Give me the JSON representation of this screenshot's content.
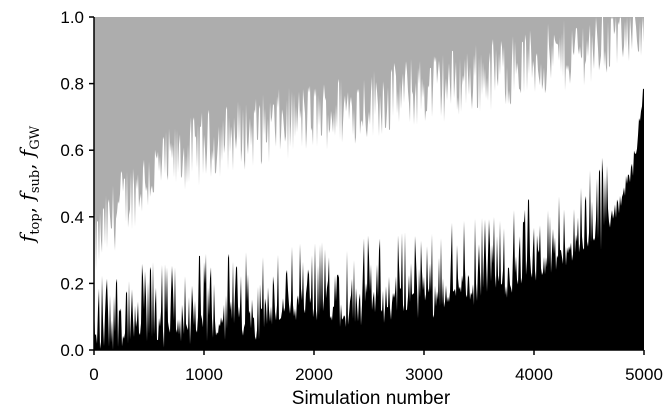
{
  "chart_data": {
    "type": "area",
    "xlabel": "Simulation number",
    "ylabel_parts": [
      {
        "f": "f",
        "sub": "top",
        "sep": ", "
      },
      {
        "f": "f",
        "sub": "sub",
        "sep": ", "
      },
      {
        "f": "f",
        "sub": "GW",
        "sep": ""
      }
    ],
    "xlim": [
      0,
      5000
    ],
    "ylim": [
      0.0,
      1.0
    ],
    "x_ticks": [
      0,
      1000,
      2000,
      3000,
      4000,
      5000
    ],
    "y_ticks": [
      "0.0",
      "0.2",
      "0.4",
      "0.6",
      "0.8",
      "1.0"
    ],
    "grid": false,
    "legend": "none",
    "colors": {
      "top": "#adadad",
      "sub": "#ffffff",
      "gw": "#000000"
    },
    "series": [
      {
        "component": "gw",
        "x": [
          0,
          250,
          500,
          750,
          1000,
          1250,
          1500,
          1750,
          2000,
          2250,
          2500,
          2750,
          3000,
          3250,
          3500,
          3750,
          4000,
          4250,
          4500,
          4750,
          4900,
          5000
        ],
        "values": [
          0.03,
          0.05,
          0.06,
          0.07,
          0.08,
          0.09,
          0.1,
          0.11,
          0.12,
          0.13,
          0.14,
          0.15,
          0.16,
          0.18,
          0.2,
          0.22,
          0.25,
          0.28,
          0.33,
          0.42,
          0.55,
          0.78
        ]
      },
      {
        "component": "gw_plus_sub",
        "x": [
          0,
          250,
          500,
          750,
          1000,
          1250,
          1500,
          1750,
          2000,
          2250,
          2500,
          2750,
          3000,
          3250,
          3500,
          3750,
          4000,
          4250,
          4500,
          4750,
          4900,
          5000
        ],
        "values": [
          0.3,
          0.44,
          0.52,
          0.57,
          0.61,
          0.64,
          0.66,
          0.68,
          0.7,
          0.72,
          0.74,
          0.76,
          0.78,
          0.8,
          0.82,
          0.84,
          0.86,
          0.88,
          0.91,
          0.94,
          0.97,
          0.99
        ]
      }
    ]
  }
}
